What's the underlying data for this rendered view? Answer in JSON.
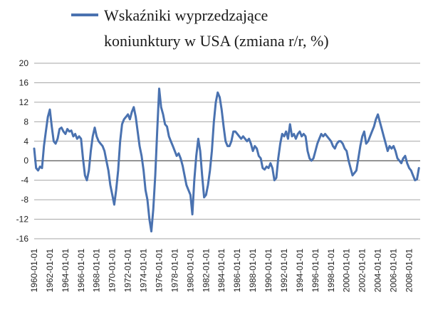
{
  "chart_data": {
    "type": "line",
    "title": "",
    "xlabel": "",
    "ylabel": "",
    "legend": {
      "position": "top",
      "lines": [
        "Wskaźniki wyprzedzające",
        "koniunktury w USA (zmiana r/r, %)"
      ]
    },
    "series": [
      {
        "name": "Wskaźniki wyprzedzające koniunktury w USA (zmiana r/r, %)",
        "color": "#4a72b0",
        "points": [
          [
            "1960-01-01",
            2.5
          ],
          [
            "1960-04-01",
            -1.5
          ],
          [
            "1960-07-01",
            -2.0
          ],
          [
            "1960-10-01",
            -1.2
          ],
          [
            "1961-01-01",
            -1.5
          ],
          [
            "1961-04-01",
            3.0
          ],
          [
            "1961-07-01",
            6.0
          ],
          [
            "1961-10-01",
            9.0
          ],
          [
            "1962-01-01",
            10.5
          ],
          [
            "1962-04-01",
            7.0
          ],
          [
            "1962-07-01",
            4.0
          ],
          [
            "1962-10-01",
            3.5
          ],
          [
            "1963-01-01",
            4.5
          ],
          [
            "1963-04-01",
            6.5
          ],
          [
            "1963-07-01",
            6.8
          ],
          [
            "1963-10-01",
            6.0
          ],
          [
            "1964-01-01",
            5.5
          ],
          [
            "1964-04-01",
            6.5
          ],
          [
            "1964-07-01",
            6.0
          ],
          [
            "1964-10-01",
            6.2
          ],
          [
            "1965-01-01",
            5.0
          ],
          [
            "1965-04-01",
            5.5
          ],
          [
            "1965-07-01",
            4.5
          ],
          [
            "1965-10-01",
            5.0
          ],
          [
            "1966-01-01",
            4.5
          ],
          [
            "1966-04-01",
            0.5
          ],
          [
            "1966-07-01",
            -3.0
          ],
          [
            "1966-10-01",
            -4.0
          ],
          [
            "1967-01-01",
            -2.0
          ],
          [
            "1967-04-01",
            2.0
          ],
          [
            "1967-07-01",
            5.0
          ],
          [
            "1967-10-01",
            6.8
          ],
          [
            "1968-01-01",
            5.0
          ],
          [
            "1968-04-01",
            4.0
          ],
          [
            "1968-07-01",
            3.5
          ],
          [
            "1968-10-01",
            3.0
          ],
          [
            "1969-01-01",
            2.0
          ],
          [
            "1969-04-01",
            0.0
          ],
          [
            "1969-07-01",
            -2.0
          ],
          [
            "1969-10-01",
            -5.0
          ],
          [
            "1970-01-01",
            -7.0
          ],
          [
            "1970-04-01",
            -9.0
          ],
          [
            "1970-07-01",
            -6.0
          ],
          [
            "1970-10-01",
            -2.0
          ],
          [
            "1971-01-01",
            4.0
          ],
          [
            "1971-04-01",
            7.5
          ],
          [
            "1971-07-01",
            8.5
          ],
          [
            "1971-10-01",
            9.0
          ],
          [
            "1972-01-01",
            9.5
          ],
          [
            "1972-04-01",
            8.5
          ],
          [
            "1972-07-01",
            10.0
          ],
          [
            "1972-10-01",
            11.0
          ],
          [
            "1973-01-01",
            9.0
          ],
          [
            "1973-04-01",
            6.0
          ],
          [
            "1973-07-01",
            3.0
          ],
          [
            "1973-10-01",
            1.0
          ],
          [
            "1974-01-01",
            -2.0
          ],
          [
            "1974-04-01",
            -6.0
          ],
          [
            "1974-07-01",
            -8.0
          ],
          [
            "1974-10-01",
            -12.0
          ],
          [
            "1975-01-01",
            -14.5
          ],
          [
            "1975-04-01",
            -10.0
          ],
          [
            "1975-07-01",
            -3.0
          ],
          [
            "1975-10-01",
            6.0
          ],
          [
            "1976-01-01",
            14.8
          ],
          [
            "1976-04-01",
            11.0
          ],
          [
            "1976-07-01",
            9.5
          ],
          [
            "1976-10-01",
            7.5
          ],
          [
            "1977-01-01",
            7.0
          ],
          [
            "1977-04-01",
            5.0
          ],
          [
            "1977-07-01",
            4.0
          ],
          [
            "1977-10-01",
            3.0
          ],
          [
            "1978-01-01",
            2.0
          ],
          [
            "1978-04-01",
            1.0
          ],
          [
            "1978-07-01",
            1.5
          ],
          [
            "1978-10-01",
            0.5
          ],
          [
            "1979-01-01",
            -1.0
          ],
          [
            "1979-04-01",
            -3.0
          ],
          [
            "1979-07-01",
            -5.0
          ],
          [
            "1979-10-01",
            -6.0
          ],
          [
            "1980-01-01",
            -7.0
          ],
          [
            "1980-04-01",
            -11.0
          ],
          [
            "1980-07-01",
            -4.0
          ],
          [
            "1980-10-01",
            1.0
          ],
          [
            "1981-01-01",
            4.5
          ],
          [
            "1981-04-01",
            2.0
          ],
          [
            "1981-07-01",
            -3.0
          ],
          [
            "1981-10-01",
            -7.5
          ],
          [
            "1982-01-01",
            -7.0
          ],
          [
            "1982-04-01",
            -5.0
          ],
          [
            "1982-07-01",
            -2.0
          ],
          [
            "1982-10-01",
            2.0
          ],
          [
            "1983-01-01",
            8.0
          ],
          [
            "1983-04-01",
            12.0
          ],
          [
            "1983-07-01",
            14.0
          ],
          [
            "1983-10-01",
            13.0
          ],
          [
            "1984-01-01",
            10.5
          ],
          [
            "1984-04-01",
            7.0
          ],
          [
            "1984-07-01",
            4.0
          ],
          [
            "1984-10-01",
            3.0
          ],
          [
            "1985-01-01",
            3.0
          ],
          [
            "1985-04-01",
            4.0
          ],
          [
            "1985-07-01",
            6.0
          ],
          [
            "1985-10-01",
            6.0
          ],
          [
            "1986-01-01",
            5.5
          ],
          [
            "1986-04-01",
            5.0
          ],
          [
            "1986-07-01",
            4.5
          ],
          [
            "1986-10-01",
            5.0
          ],
          [
            "1987-01-01",
            4.5
          ],
          [
            "1987-04-01",
            4.0
          ],
          [
            "1987-07-01",
            4.5
          ],
          [
            "1987-10-01",
            3.5
          ],
          [
            "1988-01-01",
            2.0
          ],
          [
            "1988-04-01",
            3.0
          ],
          [
            "1988-07-01",
            2.5
          ],
          [
            "1988-10-01",
            1.0
          ],
          [
            "1989-01-01",
            0.5
          ],
          [
            "1989-04-01",
            -1.5
          ],
          [
            "1989-07-01",
            -1.8
          ],
          [
            "1989-10-01",
            -1.2
          ],
          [
            "1990-01-01",
            -1.5
          ],
          [
            "1990-04-01",
            -0.5
          ],
          [
            "1990-07-01",
            -1.5
          ],
          [
            "1990-10-01",
            -4.0
          ],
          [
            "1991-01-01",
            -3.5
          ],
          [
            "1991-04-01",
            0.5
          ],
          [
            "1991-07-01",
            3.5
          ],
          [
            "1991-10-01",
            5.5
          ],
          [
            "1992-01-01",
            5.0
          ],
          [
            "1992-04-01",
            6.0
          ],
          [
            "1992-07-01",
            4.5
          ],
          [
            "1992-10-01",
            7.5
          ],
          [
            "1993-01-01",
            5.0
          ],
          [
            "1993-04-01",
            5.5
          ],
          [
            "1993-07-01",
            4.5
          ],
          [
            "1993-10-01",
            5.5
          ],
          [
            "1994-01-01",
            6.0
          ],
          [
            "1994-04-01",
            5.0
          ],
          [
            "1994-07-01",
            5.5
          ],
          [
            "1994-10-01",
            5.0
          ],
          [
            "1995-01-01",
            2.0
          ],
          [
            "1995-04-01",
            0.5
          ],
          [
            "1995-07-01",
            0.0
          ],
          [
            "1995-10-01",
            0.5
          ],
          [
            "1996-01-01",
            2.0
          ],
          [
            "1996-04-01",
            3.5
          ],
          [
            "1996-07-01",
            4.5
          ],
          [
            "1996-10-01",
            5.5
          ],
          [
            "1997-01-01",
            5.0
          ],
          [
            "1997-04-01",
            5.5
          ],
          [
            "1997-07-01",
            5.0
          ],
          [
            "1997-10-01",
            4.5
          ],
          [
            "1998-01-01",
            4.0
          ],
          [
            "1998-04-01",
            3.0
          ],
          [
            "1998-07-01",
            2.5
          ],
          [
            "1998-10-01",
            3.5
          ],
          [
            "1999-01-01",
            4.0
          ],
          [
            "1999-04-01",
            4.0
          ],
          [
            "1999-07-01",
            3.5
          ],
          [
            "1999-10-01",
            2.5
          ],
          [
            "2000-01-01",
            2.0
          ],
          [
            "2000-04-01",
            0.0
          ],
          [
            "2000-07-01",
            -1.5
          ],
          [
            "2000-10-01",
            -3.0
          ],
          [
            "2001-01-01",
            -2.5
          ],
          [
            "2001-04-01",
            -2.0
          ],
          [
            "2001-07-01",
            0.5
          ],
          [
            "2001-10-01",
            3.0
          ],
          [
            "2002-01-01",
            5.0
          ],
          [
            "2002-04-01",
            6.0
          ],
          [
            "2002-07-01",
            3.5
          ],
          [
            "2002-10-01",
            4.0
          ],
          [
            "2003-01-01",
            5.0
          ],
          [
            "2003-04-01",
            6.0
          ],
          [
            "2003-07-01",
            7.0
          ],
          [
            "2003-10-01",
            8.5
          ],
          [
            "2004-01-01",
            9.5
          ],
          [
            "2004-04-01",
            8.0
          ],
          [
            "2004-07-01",
            6.5
          ],
          [
            "2004-10-01",
            5.0
          ],
          [
            "2005-01-01",
            3.5
          ],
          [
            "2005-04-01",
            2.0
          ],
          [
            "2005-07-01",
            3.0
          ],
          [
            "2005-10-01",
            2.5
          ],
          [
            "2006-01-01",
            3.0
          ],
          [
            "2006-04-01",
            2.0
          ],
          [
            "2006-07-01",
            0.5
          ],
          [
            "2006-10-01",
            0.0
          ],
          [
            "2007-01-01",
            -0.5
          ],
          [
            "2007-04-01",
            0.5
          ],
          [
            "2007-07-01",
            1.0
          ],
          [
            "2007-10-01",
            -0.5
          ],
          [
            "2008-01-01",
            -1.5
          ],
          [
            "2008-04-01",
            -2.0
          ],
          [
            "2008-07-01",
            -3.0
          ],
          [
            "2008-10-01",
            -4.0
          ],
          [
            "2009-01-01",
            -3.8
          ],
          [
            "2009-04-01",
            -1.5
          ]
        ]
      }
    ],
    "y_axis": {
      "range": [
        -16,
        20
      ],
      "ticks": [
        20,
        16,
        12,
        8,
        4,
        0,
        -4,
        -8,
        -12,
        -16
      ],
      "tick_labels": [
        "20",
        "16",
        "12",
        "8",
        "4",
        "0",
        "-4",
        "-8",
        "-12",
        "-16"
      ],
      "grid": true,
      "grid_color": "#a6a6a6"
    },
    "x_axis": {
      "range": [
        "1960-01-01",
        "2009-06-01"
      ],
      "tick_labels": [
        "1960-01-01",
        "1962-01-01",
        "1964-01-01",
        "1966-01-01",
        "1968-01-01",
        "1970-01-01",
        "1972-01-01",
        "1974-01-01",
        "1976-01-01",
        "1978-01-01",
        "1980-01-01",
        "1982-01-01",
        "1984-01-01",
        "1986-01-01",
        "1988-01-01",
        "1990-01-01",
        "1992-01-01",
        "1994-01-01",
        "1996-01-01",
        "1998-01-01",
        "2000-01-01",
        "2002-01-01",
        "2004-01-01",
        "2006-01-01",
        "2008-01-01"
      ]
    }
  }
}
